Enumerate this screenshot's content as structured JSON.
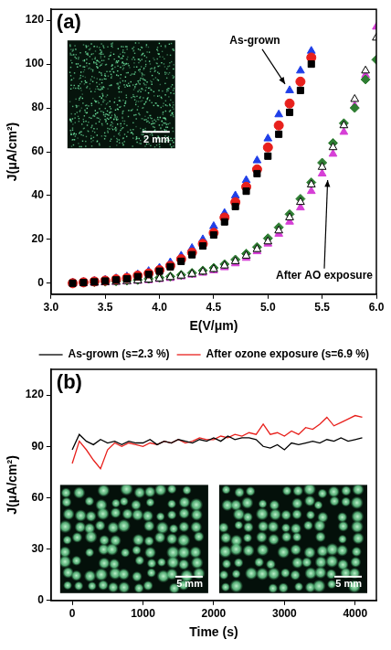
{
  "chart_data": [
    {
      "type": "scatter",
      "panel_label": "(a)",
      "x_label": "E(V/μm)",
      "y_label": "J(μA/cm²)",
      "xlim": [
        3,
        6
      ],
      "xticks": [
        {
          "value": 3,
          "label": "3.0"
        },
        3.5,
        {
          "value": 4,
          "label": "4.0"
        },
        4.5,
        {
          "value": 5,
          "label": "5.0"
        },
        5.5,
        {
          "value": 6,
          "label": "6.0"
        }
      ],
      "ylim": [
        -5,
        125
      ],
      "yticks": [
        0,
        20,
        40,
        60,
        80,
        100,
        120
      ],
      "grid": false,
      "annotations": [
        "As-grown",
        "After AO exposure"
      ],
      "inset_scale_bars": [
        "2 mm"
      ],
      "series": [
        {
          "color": "#000000",
          "marker": "square",
          "x": [
            3.2,
            3.3,
            3.4,
            3.5,
            3.6,
            3.7,
            3.8,
            3.9,
            4.0,
            4.1,
            4.2,
            4.3,
            4.4,
            4.5,
            4.6,
            4.7,
            4.8,
            4.9,
            5.0,
            5.1,
            5.2,
            5.3,
            5.4
          ],
          "values": [
            0,
            0.3,
            0.6,
            1,
            1.5,
            2,
            3,
            4,
            5.5,
            7.5,
            10,
            13,
            17,
            22,
            28,
            35,
            42,
            50,
            58,
            68,
            78,
            88,
            100
          ]
        },
        {
          "color": "#e8201c",
          "marker": "circle",
          "x": [
            3.2,
            3.3,
            3.4,
            3.5,
            3.6,
            3.7,
            3.8,
            3.9,
            4.0,
            4.1,
            4.2,
            4.3,
            4.4,
            4.5,
            4.6,
            4.7,
            4.8,
            4.9,
            5.0,
            5.1,
            5.2,
            5.3,
            5.4
          ],
          "values": [
            0,
            0.4,
            0.8,
            1.2,
            1.8,
            2.4,
            3.5,
            4.5,
            6,
            8,
            11,
            14,
            18,
            23,
            30,
            37,
            44,
            52,
            62,
            72,
            82,
            92,
            103
          ]
        },
        {
          "color": "#1f3fe8",
          "marker": "triangle",
          "x": [
            3.2,
            3.3,
            3.4,
            3.5,
            3.6,
            3.7,
            3.8,
            3.9,
            4.0,
            4.1,
            4.2,
            4.3,
            4.4,
            4.5,
            4.6,
            4.7,
            4.8,
            4.9,
            5.0,
            5.1,
            5.2,
            5.3,
            5.4
          ],
          "values": [
            0.2,
            0.5,
            1,
            1.5,
            2.2,
            3,
            4,
            5.5,
            7,
            9.5,
            12.5,
            16,
            20,
            26,
            32,
            40,
            47,
            56,
            66,
            77,
            88,
            97,
            106
          ]
        },
        {
          "color": "#ffffff",
          "marker": "triangle",
          "x": [
            3.2,
            3.3,
            3.4,
            3.5,
            3.6,
            3.7,
            3.8,
            3.9,
            4.0,
            4.1,
            4.2,
            4.3,
            4.4,
            4.5,
            4.6,
            4.7,
            4.8,
            4.9,
            5.0,
            5.1,
            5.2,
            5.3,
            5.4,
            5.5,
            5.6,
            5.7,
            5.8,
            5.9,
            6.0
          ],
          "values": [
            0,
            0.1,
            0.2,
            0.4,
            0.6,
            0.9,
            1.2,
            1.6,
            2.1,
            2.7,
            3.4,
            4.2,
            5.2,
            6.4,
            8,
            10,
            12.5,
            15.5,
            19,
            24,
            30,
            37,
            45,
            53,
            62,
            72,
            84,
            97,
            112
          ]
        },
        {
          "color": "#2e7d32",
          "marker": "diamond",
          "x": [
            3.2,
            3.3,
            3.4,
            3.5,
            3.6,
            3.7,
            3.8,
            3.9,
            4.0,
            4.1,
            4.2,
            4.3,
            4.4,
            4.5,
            4.6,
            4.7,
            4.8,
            4.9,
            5.0,
            5.1,
            5.2,
            5.3,
            5.4,
            5.5,
            5.6,
            5.7,
            5.8,
            5.9,
            6.0
          ],
          "values": [
            0.2,
            0.3,
            0.5,
            0.7,
            0.9,
            1.2,
            1.5,
            2,
            2.5,
            3.1,
            3.8,
            4.7,
            5.8,
            7,
            8.7,
            10.8,
            13.5,
            16.5,
            20.5,
            25.5,
            31.5,
            38.5,
            46,
            55,
            64,
            73,
            80,
            93,
            102
          ]
        },
        {
          "color": "#d63fd6",
          "marker": "triangle",
          "x": [
            3.2,
            3.3,
            3.4,
            3.5,
            3.6,
            3.7,
            3.8,
            3.9,
            4.0,
            4.1,
            4.2,
            4.3,
            4.4,
            4.5,
            4.6,
            4.7,
            4.8,
            4.9,
            5.0,
            5.1,
            5.2,
            5.3,
            5.4,
            5.5,
            5.6,
            5.7,
            5.8,
            5.9,
            6.0
          ],
          "values": [
            0,
            0.1,
            0.2,
            0.3,
            0.5,
            0.7,
            1,
            1.3,
            1.8,
            2.3,
            3,
            3.8,
            4.7,
            5.8,
            7.2,
            9,
            11.5,
            14.5,
            18,
            22.5,
            28,
            34.5,
            42,
            50,
            59,
            69,
            81,
            95,
            117
          ]
        }
      ]
    },
    {
      "type": "line",
      "panel_label": "(b)",
      "x_label": "Time (s)",
      "y_label": "J(μA/cm²)",
      "xlim": [
        -300,
        4300
      ],
      "xticks": [
        0,
        1000,
        2000,
        3000,
        4000
      ],
      "ylim": [
        0,
        135
      ],
      "yticks": [
        0,
        30,
        60,
        90,
        120
      ],
      "grid": false,
      "legend": "top",
      "inset_scale_bars": [
        "5 mm",
        "5 mm"
      ],
      "x": [
        0,
        100,
        200,
        300,
        400,
        500,
        600,
        700,
        800,
        900,
        1000,
        1100,
        1200,
        1300,
        1400,
        1500,
        1600,
        1700,
        1800,
        1900,
        2000,
        2100,
        2200,
        2300,
        2400,
        2500,
        2600,
        2700,
        2800,
        2900,
        3000,
        3100,
        3200,
        3300,
        3400,
        3500,
        3600,
        3700,
        3800,
        3900,
        4000,
        4100
      ],
      "series": [
        {
          "name": "As-grown (s=2.3 %)",
          "color": "#000000",
          "line_style": "solid",
          "values": [
            88,
            97,
            93,
            91,
            94,
            92,
            93,
            91,
            93,
            92,
            92,
            94,
            91,
            93,
            92,
            94,
            93,
            92,
            94,
            93,
            95,
            93,
            96,
            94,
            95,
            95,
            94,
            90,
            89,
            91,
            88,
            92,
            91,
            92,
            93,
            92,
            94,
            93,
            95,
            93,
            94,
            95
          ]
        },
        {
          "name": "After ozone exposure (s=6.9 %)",
          "color": "#e8201c",
          "line_style": "solid",
          "values": [
            80,
            93,
            88,
            82,
            77,
            88,
            92,
            90,
            92,
            91,
            90,
            92,
            91,
            93,
            92,
            94,
            92,
            93,
            95,
            94,
            94,
            96,
            95,
            97,
            96,
            98,
            97,
            103,
            97,
            98,
            96,
            99,
            97,
            101,
            100,
            103,
            107,
            102,
            104,
            106,
            108,
            107
          ]
        }
      ]
    }
  ]
}
